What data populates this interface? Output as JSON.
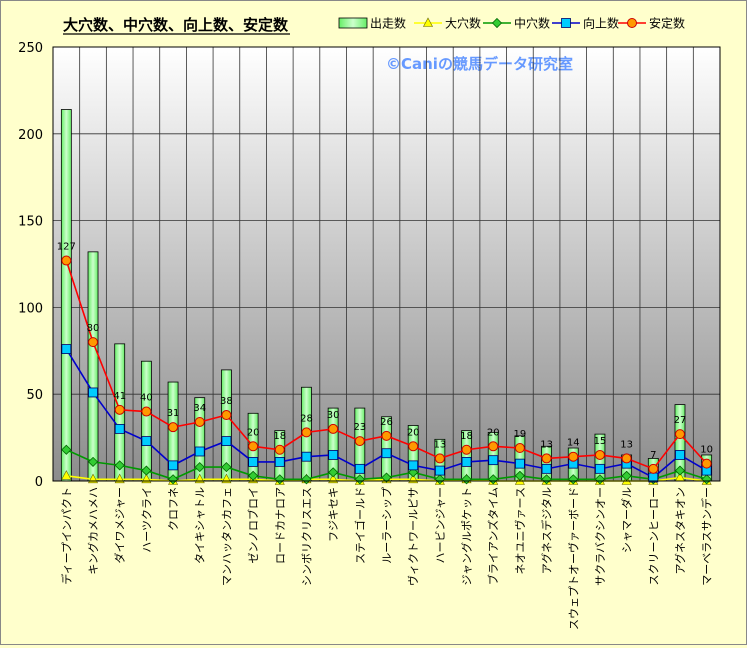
{
  "chart_data": {
    "type": "bar",
    "title": "大穴数、中穴数、向上数、安定数",
    "watermark": "©Caniの競馬データ研究室",
    "ylim": [
      0,
      250
    ],
    "yticks": [
      0,
      50,
      100,
      150,
      200,
      250
    ],
    "grid": true,
    "legend": "top",
    "categories": [
      "ディープインパクト",
      "キングカメハメハ",
      "ダイワメジャー",
      "ハーツクライ",
      "クロフネ",
      "タイキシャトル",
      "マンハッタンカフェ",
      "ゼンノロブロイ",
      "ロードカナロア",
      "シンボリクリスエス",
      "フジキセキ",
      "ステイゴールド",
      "ルーラーシップ",
      "ヴィクトワールピサ",
      "ハービンジャー",
      "ジャングルポケット",
      "ブライアンズタイム",
      "ネオユニヴァース",
      "アグネスデジタル",
      "スウェプトオーヴァーボード",
      "サクラバクシンオー",
      "シャマーダル",
      "スクリーンヒーロー",
      "アグネスタキオン",
      "マーベラスサンデー"
    ],
    "series": [
      {
        "name": "出走数",
        "type": "bar",
        "color": "#99ff99",
        "values": [
          214,
          132,
          79,
          69,
          57,
          48,
          64,
          39,
          29,
          54,
          42,
          42,
          37,
          32,
          24,
          29,
          28,
          26,
          20,
          19,
          27,
          15,
          13,
          44,
          15
        ]
      },
      {
        "name": "大穴数",
        "type": "line",
        "color": "#ffff00",
        "values": [
          3,
          1,
          1,
          1,
          0,
          1,
          1,
          1,
          0,
          1,
          1,
          0,
          1,
          1,
          0,
          1,
          0,
          0,
          0,
          0,
          0,
          0,
          0,
          2,
          0
        ]
      },
      {
        "name": "中穴数",
        "type": "line",
        "color": "#009900",
        "values": [
          18,
          11,
          9,
          6,
          1,
          8,
          8,
          3,
          1,
          1,
          5,
          1,
          2,
          5,
          1,
          1,
          1,
          3,
          1,
          1,
          1,
          3,
          1,
          6,
          1
        ]
      },
      {
        "name": "向上数",
        "type": "line",
        "color": "#0000cc",
        "values": [
          76,
          51,
          30,
          23,
          9,
          17,
          23,
          11,
          11,
          14,
          15,
          7,
          16,
          9,
          6,
          11,
          12,
          10,
          7,
          10,
          7,
          10,
          2,
          15,
          6
        ]
      },
      {
        "name": "安定数",
        "type": "line",
        "color": "#ff0000",
        "values": [
          127,
          80,
          41,
          40,
          31,
          34,
          38,
          20,
          18,
          28,
          30,
          23,
          26,
          20,
          13,
          18,
          20,
          19,
          13,
          14,
          15,
          13,
          7,
          27,
          10
        ]
      }
    ],
    "data_labels": [
      127,
      80,
      41,
      40,
      31,
      34,
      38,
      20,
      18,
      28,
      30,
      23,
      26,
      20,
      13,
      18,
      20,
      19,
      13,
      14,
      15,
      13,
      7,
      27,
      10
    ]
  }
}
